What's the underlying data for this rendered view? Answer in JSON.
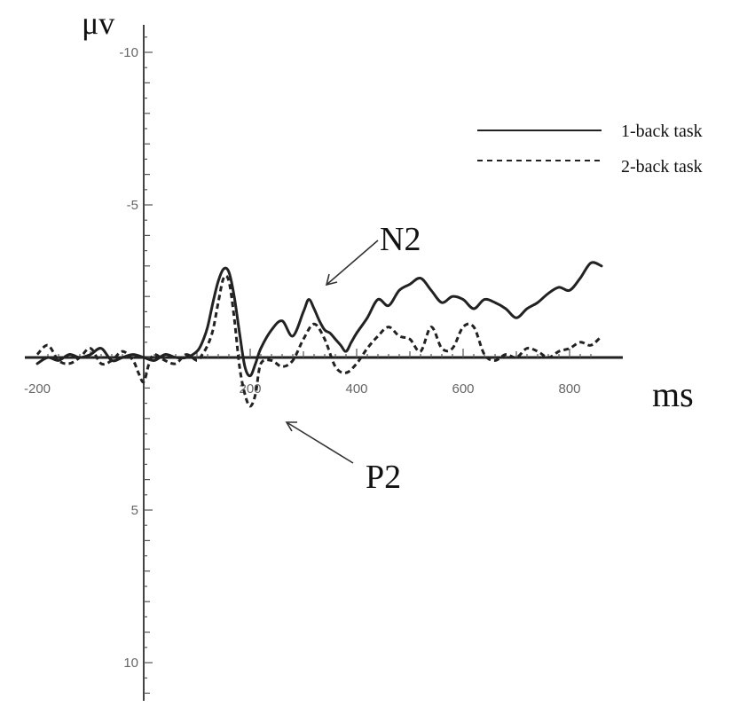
{
  "chart_data": {
    "type": "line",
    "title": "",
    "xlabel": "ms",
    "ylabel": "μv",
    "xlim": [
      -200,
      860
    ],
    "ylim": [
      -10.8,
      11.2
    ],
    "y_inverted": true,
    "x_ticks": [
      -200,
      200,
      400,
      600,
      800
    ],
    "y_ticks": [
      -10,
      -5,
      5,
      10
    ],
    "grid": false,
    "legend_position": "top-right",
    "series": [
      {
        "name": "1-back task",
        "line_style": "solid",
        "color": "#222222",
        "x": [
          -200,
          -180,
          -160,
          -140,
          -120,
          -100,
          -80,
          -60,
          -40,
          -20,
          0,
          20,
          40,
          60,
          80,
          100,
          110,
          120,
          130,
          140,
          150,
          160,
          170,
          180,
          190,
          200,
          210,
          220,
          240,
          260,
          280,
          300,
          310,
          320,
          330,
          340,
          350,
          360,
          370,
          380,
          390,
          400,
          420,
          440,
          460,
          480,
          500,
          520,
          540,
          560,
          580,
          600,
          620,
          640,
          660,
          680,
          700,
          720,
          740,
          760,
          780,
          800,
          820,
          840,
          860
        ],
        "y": [
          0.2,
          0,
          0.1,
          -0.1,
          0,
          -0.1,
          -0.3,
          0.1,
          0,
          -0.1,
          0,
          0.1,
          -0.1,
          0,
          0,
          -0.2,
          -0.5,
          -1.0,
          -1.8,
          -2.5,
          -2.9,
          -2.8,
          -2.0,
          -0.8,
          0.3,
          0.6,
          0.2,
          -0.3,
          -0.9,
          -1.2,
          -0.7,
          -1.5,
          -1.9,
          -1.6,
          -1.2,
          -0.9,
          -0.8,
          -0.6,
          -0.4,
          -0.2,
          -0.5,
          -0.8,
          -1.3,
          -1.9,
          -1.7,
          -2.2,
          -2.4,
          -2.6,
          -2.2,
          -1.8,
          -2.0,
          -1.9,
          -1.6,
          -1.9,
          -1.8,
          -1.6,
          -1.3,
          -1.6,
          -1.8,
          -2.1,
          -2.3,
          -2.2,
          -2.6,
          -3.1,
          -3.0
        ]
      },
      {
        "name": "2-back task",
        "line_style": "dashed",
        "color": "#222222",
        "x": [
          -200,
          -180,
          -160,
          -140,
          -120,
          -100,
          -80,
          -60,
          -40,
          -20,
          -10,
          0,
          10,
          20,
          40,
          60,
          80,
          100,
          110,
          120,
          130,
          140,
          150,
          160,
          170,
          180,
          190,
          200,
          210,
          220,
          240,
          260,
          280,
          300,
          320,
          340,
          360,
          380,
          400,
          420,
          440,
          460,
          480,
          500,
          520,
          540,
          560,
          580,
          600,
          620,
          640,
          660,
          680,
          700,
          720,
          740,
          760,
          780,
          800,
          820,
          840,
          860
        ],
        "y": [
          -0.1,
          -0.4,
          0.1,
          0.2,
          0,
          -0.3,
          0.2,
          0.1,
          -0.2,
          0.1,
          0.5,
          0.8,
          0.2,
          -0.1,
          0.1,
          0.2,
          -0.1,
          0.1,
          -0.1,
          -0.4,
          -0.9,
          -1.8,
          -2.6,
          -2.5,
          -1.3,
          0.3,
          1.2,
          1.6,
          1.2,
          0.2,
          0.1,
          0.3,
          0.1,
          -0.6,
          -1.1,
          -0.6,
          0.3,
          0.5,
          0.2,
          -0.3,
          -0.7,
          -1.0,
          -0.7,
          -0.6,
          -0.2,
          -1.0,
          -0.3,
          -0.3,
          -1.0,
          -1.0,
          -0.1,
          0.1,
          -0.1,
          0,
          -0.3,
          -0.2,
          0,
          -0.2,
          -0.3,
          -0.5,
          -0.4,
          -0.7
        ]
      }
    ],
    "annotations": [
      {
        "text": "N2",
        "x": 330,
        "y": -1.9
      },
      {
        "text": "P2",
        "x": 270,
        "y": 2.0
      }
    ]
  }
}
